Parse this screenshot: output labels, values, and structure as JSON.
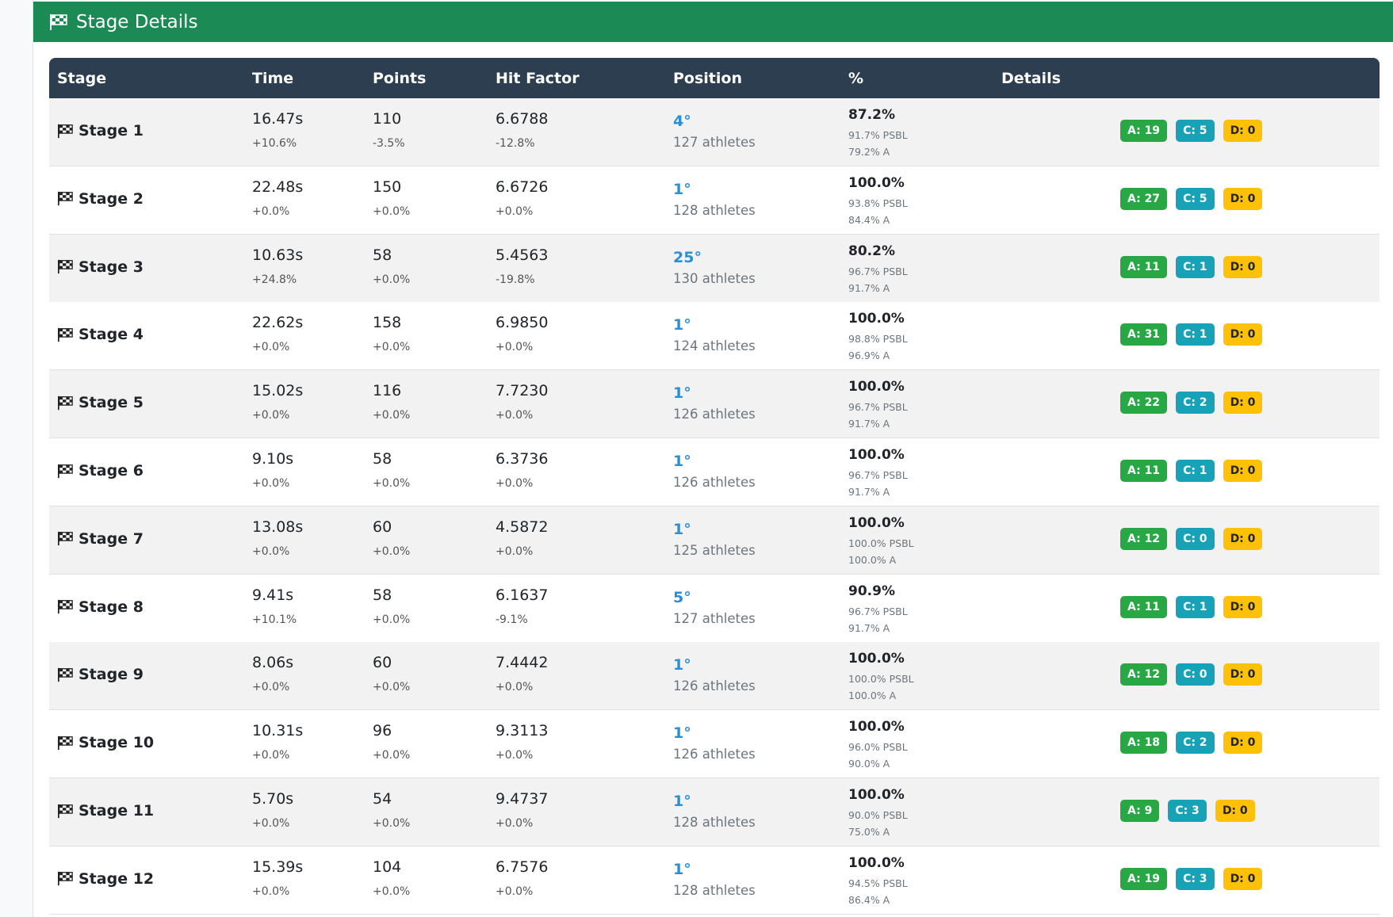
{
  "header": {
    "title": "Stage Details"
  },
  "table": {
    "columns": [
      "Stage",
      "Time",
      "Points",
      "Hit Factor",
      "Position",
      "%",
      "Details"
    ],
    "rows": [
      {
        "stage": "Stage 1",
        "time": "16.47s",
        "time_diff": "+10.6%",
        "points": "110",
        "points_diff": "-3.5%",
        "hit_factor": "6.6788",
        "hf_diff": "-12.8%",
        "position": "4°",
        "athletes": "127 athletes",
        "pct": "87.2%",
        "psbl": "91.7% PSBL",
        "a_pct": "79.2% A",
        "a": "A: 19",
        "c": "C: 5",
        "d": "D: 0"
      },
      {
        "stage": "Stage 2",
        "time": "22.48s",
        "time_diff": "+0.0%",
        "points": "150",
        "points_diff": "+0.0%",
        "hit_factor": "6.6726",
        "hf_diff": "+0.0%",
        "position": "1°",
        "athletes": "128 athletes",
        "pct": "100.0%",
        "psbl": "93.8% PSBL",
        "a_pct": "84.4% A",
        "a": "A: 27",
        "c": "C: 5",
        "d": "D: 0"
      },
      {
        "stage": "Stage 3",
        "time": "10.63s",
        "time_diff": "+24.8%",
        "points": "58",
        "points_diff": "+0.0%",
        "hit_factor": "5.4563",
        "hf_diff": "-19.8%",
        "position": "25°",
        "athletes": "130 athletes",
        "pct": "80.2%",
        "psbl": "96.7% PSBL",
        "a_pct": "91.7% A",
        "a": "A: 11",
        "c": "C: 1",
        "d": "D: 0"
      },
      {
        "stage": "Stage 4",
        "time": "22.62s",
        "time_diff": "+0.0%",
        "points": "158",
        "points_diff": "+0.0%",
        "hit_factor": "6.9850",
        "hf_diff": "+0.0%",
        "position": "1°",
        "athletes": "124 athletes",
        "pct": "100.0%",
        "psbl": "98.8% PSBL",
        "a_pct": "96.9% A",
        "a": "A: 31",
        "c": "C: 1",
        "d": "D: 0"
      },
      {
        "stage": "Stage 5",
        "time": "15.02s",
        "time_diff": "+0.0%",
        "points": "116",
        "points_diff": "+0.0%",
        "hit_factor": "7.7230",
        "hf_diff": "+0.0%",
        "position": "1°",
        "athletes": "126 athletes",
        "pct": "100.0%",
        "psbl": "96.7% PSBL",
        "a_pct": "91.7% A",
        "a": "A: 22",
        "c": "C: 2",
        "d": "D: 0"
      },
      {
        "stage": "Stage 6",
        "time": "9.10s",
        "time_diff": "+0.0%",
        "points": "58",
        "points_diff": "+0.0%",
        "hit_factor": "6.3736",
        "hf_diff": "+0.0%",
        "position": "1°",
        "athletes": "126 athletes",
        "pct": "100.0%",
        "psbl": "96.7% PSBL",
        "a_pct": "91.7% A",
        "a": "A: 11",
        "c": "C: 1",
        "d": "D: 0"
      },
      {
        "stage": "Stage 7",
        "time": "13.08s",
        "time_diff": "+0.0%",
        "points": "60",
        "points_diff": "+0.0%",
        "hit_factor": "4.5872",
        "hf_diff": "+0.0%",
        "position": "1°",
        "athletes": "125 athletes",
        "pct": "100.0%",
        "psbl": "100.0% PSBL",
        "a_pct": "100.0% A",
        "a": "A: 12",
        "c": "C: 0",
        "d": "D: 0"
      },
      {
        "stage": "Stage 8",
        "time": "9.41s",
        "time_diff": "+10.1%",
        "points": "58",
        "points_diff": "+0.0%",
        "hit_factor": "6.1637",
        "hf_diff": "-9.1%",
        "position": "5°",
        "athletes": "127 athletes",
        "pct": "90.9%",
        "psbl": "96.7% PSBL",
        "a_pct": "91.7% A",
        "a": "A: 11",
        "c": "C: 1",
        "d": "D: 0"
      },
      {
        "stage": "Stage 9",
        "time": "8.06s",
        "time_diff": "+0.0%",
        "points": "60",
        "points_diff": "+0.0%",
        "hit_factor": "7.4442",
        "hf_diff": "+0.0%",
        "position": "1°",
        "athletes": "126 athletes",
        "pct": "100.0%",
        "psbl": "100.0% PSBL",
        "a_pct": "100.0% A",
        "a": "A: 12",
        "c": "C: 0",
        "d": "D: 0"
      },
      {
        "stage": "Stage 10",
        "time": "10.31s",
        "time_diff": "+0.0%",
        "points": "96",
        "points_diff": "+0.0%",
        "hit_factor": "9.3113",
        "hf_diff": "+0.0%",
        "position": "1°",
        "athletes": "126 athletes",
        "pct": "100.0%",
        "psbl": "96.0% PSBL",
        "a_pct": "90.0% A",
        "a": "A: 18",
        "c": "C: 2",
        "d": "D: 0"
      },
      {
        "stage": "Stage 11",
        "time": "5.70s",
        "time_diff": "+0.0%",
        "points": "54",
        "points_diff": "+0.0%",
        "hit_factor": "9.4737",
        "hf_diff": "+0.0%",
        "position": "1°",
        "athletes": "128 athletes",
        "pct": "100.0%",
        "psbl": "90.0% PSBL",
        "a_pct": "75.0% A",
        "a": "A: 9",
        "c": "C: 3",
        "d": "D: 0"
      },
      {
        "stage": "Stage 12",
        "time": "15.39s",
        "time_diff": "+0.0%",
        "points": "104",
        "points_diff": "+0.0%",
        "hit_factor": "6.7576",
        "hf_diff": "+0.0%",
        "position": "1°",
        "athletes": "128 athletes",
        "pct": "100.0%",
        "psbl": "94.5% PSBL",
        "a_pct": "86.4% A",
        "a": "A: 19",
        "c": "C: 3",
        "d": "D: 0"
      }
    ]
  }
}
